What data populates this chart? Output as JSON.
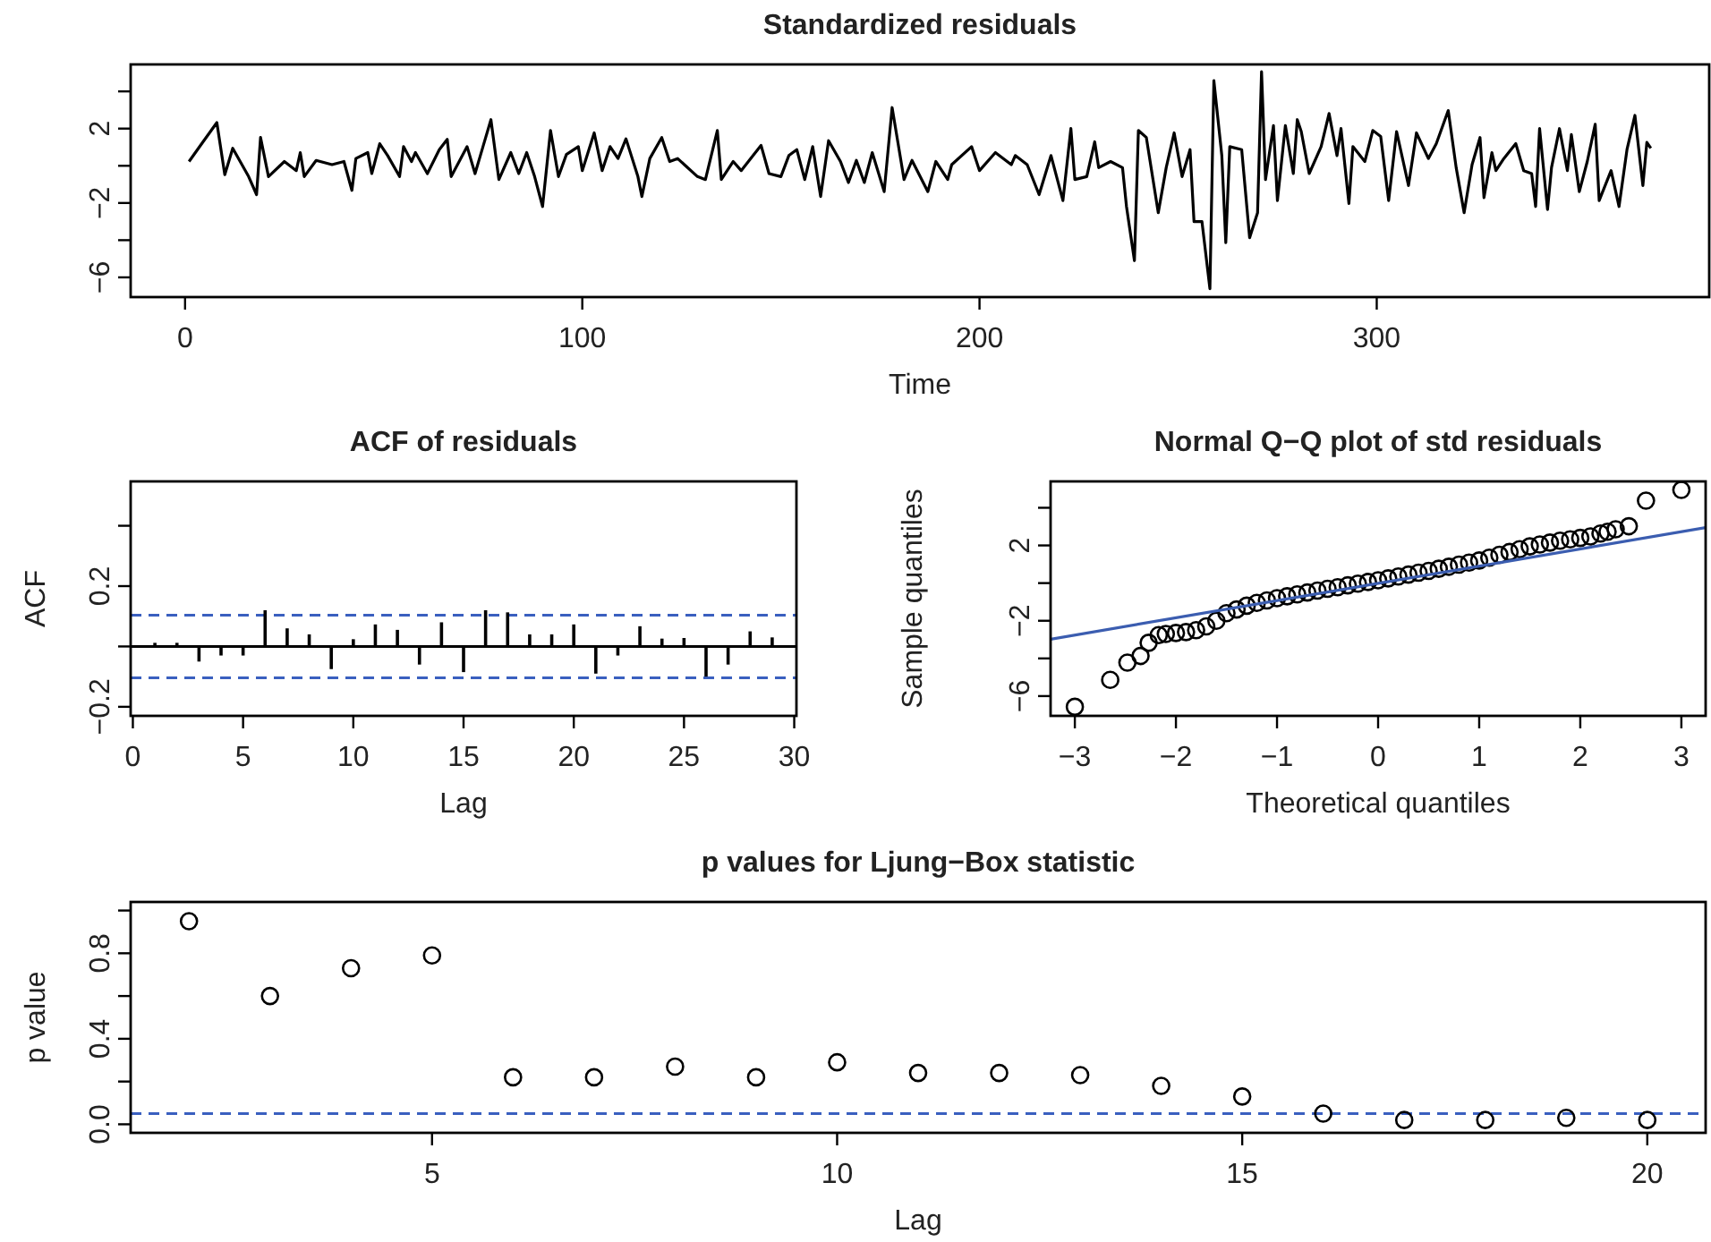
{
  "chart_data": [
    {
      "type": "line",
      "title": "Standardized residuals",
      "xlabel": "Time",
      "color": "#000000",
      "xlim": [
        -13.7,
        383.7
      ],
      "xticks": [
        0,
        100,
        200,
        300
      ],
      "ylim": [
        -7.06,
        5.45
      ],
      "yticks": [
        {
          "value": 4,
          "label": null
        },
        {
          "value": 2,
          "label": "2"
        },
        {
          "value": 0,
          "label": null
        },
        {
          "value": -2,
          "label": "−2"
        },
        {
          "value": -4,
          "label": null
        },
        {
          "value": -6,
          "label": "−6"
        }
      ],
      "x": [
        1,
        4,
        8,
        10,
        12,
        16,
        18,
        19,
        21,
        25,
        28,
        29,
        30,
        33,
        37,
        40,
        42,
        43,
        46,
        47,
        49,
        51,
        54,
        55,
        57,
        58,
        61,
        64,
        66,
        67,
        71,
        73,
        75,
        77,
        79,
        82,
        84,
        86,
        88,
        90,
        92,
        94,
        96,
        99,
        100,
        103,
        105,
        107,
        109,
        111,
        114,
        115,
        117,
        120,
        122,
        124,
        129,
        131,
        134,
        135,
        138,
        140,
        143,
        145,
        147,
        150,
        152,
        154,
        156,
        158,
        160,
        162,
        165,
        167,
        169,
        171,
        173,
        176,
        178,
        180,
        181,
        183,
        187,
        189,
        192,
        193,
        198,
        200,
        204,
        208,
        209,
        212,
        215,
        218,
        221,
        223,
        224,
        227,
        229,
        230,
        233,
        236,
        237,
        239,
        240,
        242,
        245,
        247,
        249,
        251,
        253,
        254,
        256,
        258,
        259,
        261,
        262,
        263,
        266,
        268,
        270,
        271,
        272,
        274,
        275,
        277,
        279,
        280,
        281,
        283,
        286,
        288,
        290,
        291,
        293,
        294,
        297,
        299,
        301,
        303,
        305,
        308,
        310,
        313,
        315,
        318,
        320,
        322,
        324,
        326,
        327,
        329,
        330,
        332,
        335,
        337,
        339,
        340,
        341,
        343,
        344,
        346,
        348,
        349,
        351,
        353,
        355,
        356,
        359,
        361,
        363,
        365,
        367,
        368,
        369
      ],
      "values": [
        0.23,
        1.13,
        2.32,
        -0.48,
        0.94,
        -0.58,
        -1.55,
        1.52,
        -0.58,
        0.23,
        -0.26,
        0.71,
        -0.58,
        0.29,
        0.06,
        0.23,
        -1.32,
        0.39,
        0.71,
        -0.42,
        1.19,
        0.55,
        -0.58,
        1.03,
        0.23,
        0.71,
        -0.42,
        0.87,
        1.42,
        -0.58,
        1.03,
        -0.42,
        1.03,
        2.48,
        -0.74,
        0.71,
        -0.42,
        0.71,
        -0.58,
        -2.19,
        1.9,
        -0.58,
        0.61,
        1.03,
        -0.26,
        1.77,
        -0.26,
        1.03,
        0.39,
        1.45,
        -0.58,
        -1.65,
        0.39,
        1.52,
        0.23,
        0.39,
        -0.58,
        -0.74,
        1.9,
        -0.74,
        0.23,
        -0.26,
        0.55,
        1.1,
        -0.42,
        -0.58,
        0.55,
        0.87,
        -0.74,
        1.03,
        -1.65,
        1.35,
        0.23,
        -0.9,
        0.29,
        -0.9,
        0.71,
        -1.39,
        3.13,
        0.55,
        -0.74,
        0.29,
        -1.39,
        0.23,
        -0.74,
        0.06,
        1.03,
        -0.26,
        0.71,
        0.06,
        0.55,
        0.06,
        -1.55,
        0.55,
        -1.87,
        2.0,
        -0.74,
        -0.58,
        1.29,
        -0.1,
        0.23,
        -0.1,
        -2.19,
        -5.1,
        1.9,
        1.52,
        -2.52,
        -0.1,
        1.77,
        -0.58,
        0.87,
        -3.0,
        -3.0,
        -6.61,
        4.58,
        0.55,
        -4.13,
        1.03,
        0.87,
        -3.87,
        -2.52,
        5.06,
        -0.74,
        2.16,
        -1.87,
        2.16,
        -0.42,
        2.48,
        1.84,
        -0.42,
        1.03,
        2.81,
        0.55,
        2.0,
        -2.03,
        1.03,
        0.23,
        1.9,
        1.58,
        -1.87,
        1.84,
        -1.06,
        1.77,
        0.39,
        1.19,
        2.97,
        -0.1,
        -2.52,
        0.06,
        1.52,
        -1.71,
        0.71,
        -0.26,
        0.39,
        1.19,
        -0.26,
        -0.42,
        -2.19,
        2.0,
        -2.35,
        -0.1,
        2.0,
        -0.26,
        1.68,
        -1.39,
        0.23,
        2.23,
        -1.87,
        -0.26,
        -2.19,
        0.87,
        2.71,
        -1.06,
        1.26,
        0.94
      ]
    },
    {
      "type": "bar",
      "title": "ACF of residuals",
      "xlabel": "Lag",
      "ylabel": "ACF",
      "color": "#000000",
      "xlim": [
        -0.1,
        30.1
      ],
      "xticks": [
        0,
        5,
        10,
        15,
        20,
        25,
        30
      ],
      "ylim": [
        -0.23,
        0.547
      ],
      "yticks": [
        {
          "value": 0.4,
          "label": null
        },
        {
          "value": 0.2,
          "label": "0.2"
        },
        {
          "value": 0,
          "label": null
        },
        {
          "value": -0.2,
          "label": "−0.2"
        }
      ],
      "x": [
        1,
        2,
        3,
        4,
        5,
        6,
        7,
        8,
        9,
        10,
        11,
        12,
        13,
        14,
        15,
        16,
        17,
        18,
        19,
        20,
        21,
        22,
        23,
        24,
        25,
        26,
        27,
        28,
        29
      ],
      "values": [
        0.012,
        0.012,
        -0.05,
        -0.03,
        -0.03,
        0.12,
        0.06,
        0.04,
        -0.075,
        0.024,
        0.073,
        0.055,
        -0.06,
        0.08,
        -0.085,
        0.12,
        0.113,
        0.04,
        0.04,
        0.073,
        -0.09,
        -0.03,
        0.067,
        0.026,
        0.028,
        -0.1,
        -0.06,
        0.05,
        0.03
      ],
      "ref_lines": [
        {
          "axis": "y",
          "value": 0,
          "color": "#000000",
          "line_style": "solid"
        },
        {
          "axis": "y",
          "value": 0.104,
          "color": "#3a5fbf",
          "line_style": "dashed"
        },
        {
          "axis": "y",
          "value": -0.104,
          "color": "#3a5fbf",
          "line_style": "dashed"
        }
      ]
    },
    {
      "type": "scatter",
      "title": "Normal Q−Q plot of std residuals",
      "xlabel": "Theoretical quantiles",
      "ylabel": "Sample quantiles",
      "xlim": [
        -3.24,
        3.24
      ],
      "xticks": [
        {
          "value": -3,
          "label": "−3"
        },
        {
          "value": -2,
          "label": "−2"
        },
        {
          "value": -1,
          "label": "−1"
        },
        0,
        1,
        2,
        3
      ],
      "ylim": [
        -7.05,
        5.4
      ],
      "yticks": [
        {
          "value": 4,
          "label": null
        },
        {
          "value": 2,
          "label": "2"
        },
        {
          "value": 0,
          "label": null
        },
        {
          "value": -2,
          "label": "−2"
        },
        {
          "value": -4,
          "label": null
        },
        {
          "value": -6,
          "label": "−6"
        }
      ],
      "series": [
        {
          "marker": "circle",
          "color": "#000000",
          "x": [
            -3.0,
            -2.65,
            -2.48,
            -2.35,
            -2.27,
            -2.17,
            -2.1,
            -2.0,
            -1.9,
            -1.8,
            -1.7,
            -1.6,
            -1.5,
            -1.4,
            -1.3,
            -1.2,
            -1.1,
            -1.0,
            -0.9,
            -0.8,
            -0.7,
            -0.6,
            -0.5,
            -0.4,
            -0.3,
            -0.2,
            -0.1,
            0,
            0.1,
            0.2,
            0.3,
            0.4,
            0.5,
            0.6,
            0.7,
            0.8,
            0.9,
            1.0,
            1.1,
            1.2,
            1.3,
            1.4,
            1.5,
            1.6,
            1.7,
            1.8,
            1.9,
            2.0,
            2.1,
            2.2,
            2.27,
            2.35,
            2.48,
            2.65,
            3.0
          ],
          "values": [
            -6.57,
            -5.14,
            -4.22,
            -3.87,
            -3.17,
            -2.76,
            -2.7,
            -2.65,
            -2.6,
            -2.5,
            -2.3,
            -2.0,
            -1.6,
            -1.4,
            -1.2,
            -1.05,
            -0.92,
            -0.8,
            -0.7,
            -0.6,
            -0.5,
            -0.4,
            -0.3,
            -0.22,
            -0.12,
            -0.03,
            0.06,
            0.15,
            0.25,
            0.35,
            0.45,
            0.55,
            0.65,
            0.76,
            0.87,
            0.98,
            1.09,
            1.2,
            1.35,
            1.5,
            1.65,
            1.8,
            1.95,
            2.05,
            2.15,
            2.25,
            2.32,
            2.4,
            2.48,
            2.63,
            2.73,
            2.86,
            3.02,
            4.38,
            4.95
          ]
        },
        {
          "type": "line",
          "color": "#3b5db0",
          "x": [
            -3.24,
            3.24
          ],
          "values": [
            -2.98,
            2.95
          ]
        }
      ]
    },
    {
      "type": "scatter",
      "title": "p values for Ljung−Box statistic",
      "xlabel": "Lag",
      "ylabel": "p value",
      "marker": "circle",
      "color": "#000000",
      "xlim": [
        1.28,
        20.72
      ],
      "xticks": [
        5,
        10,
        15,
        20
      ],
      "ylim": [
        -0.04,
        1.04
      ],
      "yticks": [
        {
          "value": 0,
          "label": "0.0"
        },
        {
          "value": 0.2,
          "label": null
        },
        {
          "value": 0.4,
          "label": "0.4"
        },
        {
          "value": 0.6,
          "label": null
        },
        {
          "value": 0.8,
          "label": "0.8"
        },
        {
          "value": 1.0,
          "label": null
        }
      ],
      "x": [
        2,
        3,
        4,
        5,
        6,
        7,
        8,
        9,
        10,
        11,
        12,
        13,
        14,
        15,
        16,
        17,
        18,
        19,
        20
      ],
      "values": [
        0.95,
        0.6,
        0.73,
        0.79,
        0.22,
        0.22,
        0.27,
        0.22,
        0.29,
        0.24,
        0.24,
        0.23,
        0.18,
        0.13,
        0.05,
        0.02,
        0.02,
        0.03,
        0.02
      ],
      "ref_lines": [
        {
          "axis": "y",
          "value": 0.05,
          "color": "#3a5fbf",
          "line_style": "dashed"
        }
      ]
    }
  ]
}
